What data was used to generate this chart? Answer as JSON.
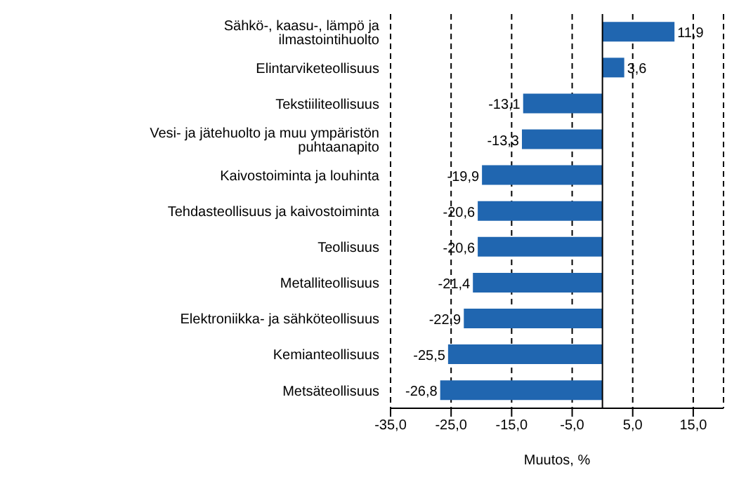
{
  "chart_data": {
    "type": "bar",
    "orientation": "horizontal",
    "xlabel": "Muutos, %",
    "categories": [
      "Sähkö-, kaasu-, lämpö ja ilmastointihuolto",
      "Elintarviketeollisuus",
      "Tekstiiliteollisuus",
      "Vesi- ja jätehuolto ja muu ympäristön puhtaanapito",
      "Kaivostoiminta ja louhinta",
      "Tehdasteollisuus ja kaivostoiminta",
      "Teollisuus",
      "Metalliteollisuus",
      "Elektroniikka- ja sähköteollisuus",
      "Kemianteollisuus",
      "Metsäteollisuus"
    ],
    "values": [
      11.9,
      3.6,
      -13.1,
      -13.3,
      -19.9,
      -20.6,
      -20.6,
      -21.4,
      -22.9,
      -25.5,
      -26.8
    ],
    "value_labels": [
      "11,9",
      "3,6",
      "-13,1",
      "-13,3",
      "-19,9",
      "-20,6",
      "-20,6",
      "-21,4",
      "-22,9",
      "-25,5",
      "-26,8"
    ],
    "color": "#2066b0",
    "xlim": [
      -35,
      20
    ],
    "xticks": [
      {
        "value": -35,
        "label": "-35,0"
      },
      {
        "value": -25,
        "label": "-25,0"
      },
      {
        "value": -15,
        "label": "-15,0"
      },
      {
        "value": -5,
        "label": "-5,0"
      },
      {
        "value": 5,
        "label": "5,0"
      },
      {
        "value": 15,
        "label": "15,0"
      }
    ],
    "grid": "x",
    "line_style": "dashed",
    "ref_lines": [
      {
        "axis": "x",
        "value": 0,
        "color": "#000000"
      }
    ]
  }
}
